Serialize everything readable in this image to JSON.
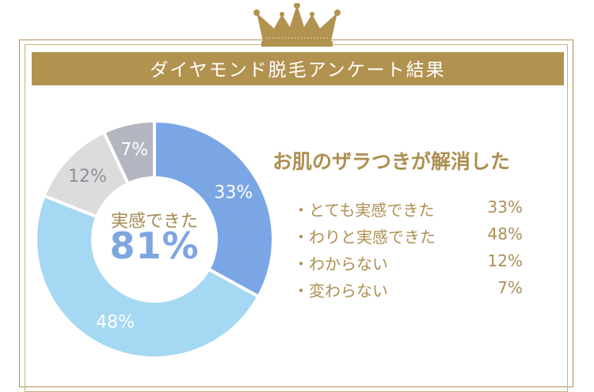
{
  "banner": {
    "title": "ダイヤモンド脱毛アンケート結果"
  },
  "chart_data": {
    "type": "pie",
    "title": "お肌のザラつきが解消した",
    "center_label": "実感できた",
    "center_value": "81%",
    "categories": [
      "とても実感できた",
      "わりと実感できた",
      "わからない",
      "変わらない"
    ],
    "values": [
      33,
      48,
      12,
      7
    ],
    "slice_labels": [
      "33%",
      "48%",
      "12%",
      "7%"
    ],
    "colors": [
      "#7ba6e6",
      "#a5d8f2",
      "#dcdcdc",
      "#b3b6c1"
    ],
    "label_colors": [
      "#ffffff",
      "#ffffff",
      "#8a8f9a",
      "#ffffff"
    ]
  },
  "legend": [
    {
      "label": "・とても実感できた",
      "pct": "33%"
    },
    {
      "label": "・わりと実感できた",
      "pct": "48%"
    },
    {
      "label": "・わからない",
      "pct": "12%"
    },
    {
      "label": "・変わらない",
      "pct": "7%"
    }
  ],
  "colors": {
    "gold": "#b2924f",
    "accent_blue": "#7ea6e0"
  }
}
